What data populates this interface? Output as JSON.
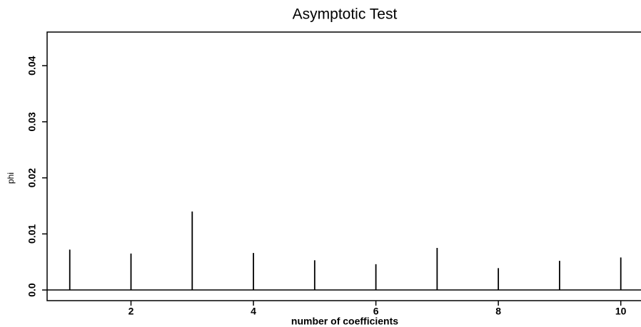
{
  "chart_data": {
    "type": "spike",
    "title": "Asymptotic Test",
    "x_label": "number of coefficients",
    "y_label": "phi",
    "x": [
      1,
      2,
      3,
      4,
      5,
      6,
      7,
      8,
      9,
      10
    ],
    "values": [
      0.0072,
      0.0065,
      0.014,
      0.0066,
      0.0053,
      0.0046,
      0.0075,
      0.0039,
      0.0052,
      0.0058
    ],
    "color": "#000000",
    "xlim": [
      0.63,
      10.33
    ],
    "xticks": [
      2,
      4,
      6,
      8,
      10
    ],
    "ylim": [
      -0.0019,
      0.046
    ],
    "yticks": [
      {
        "value": 0,
        "label": "0.0"
      },
      0.01,
      0.02,
      0.03,
      0.04
    ],
    "grid": false
  }
}
